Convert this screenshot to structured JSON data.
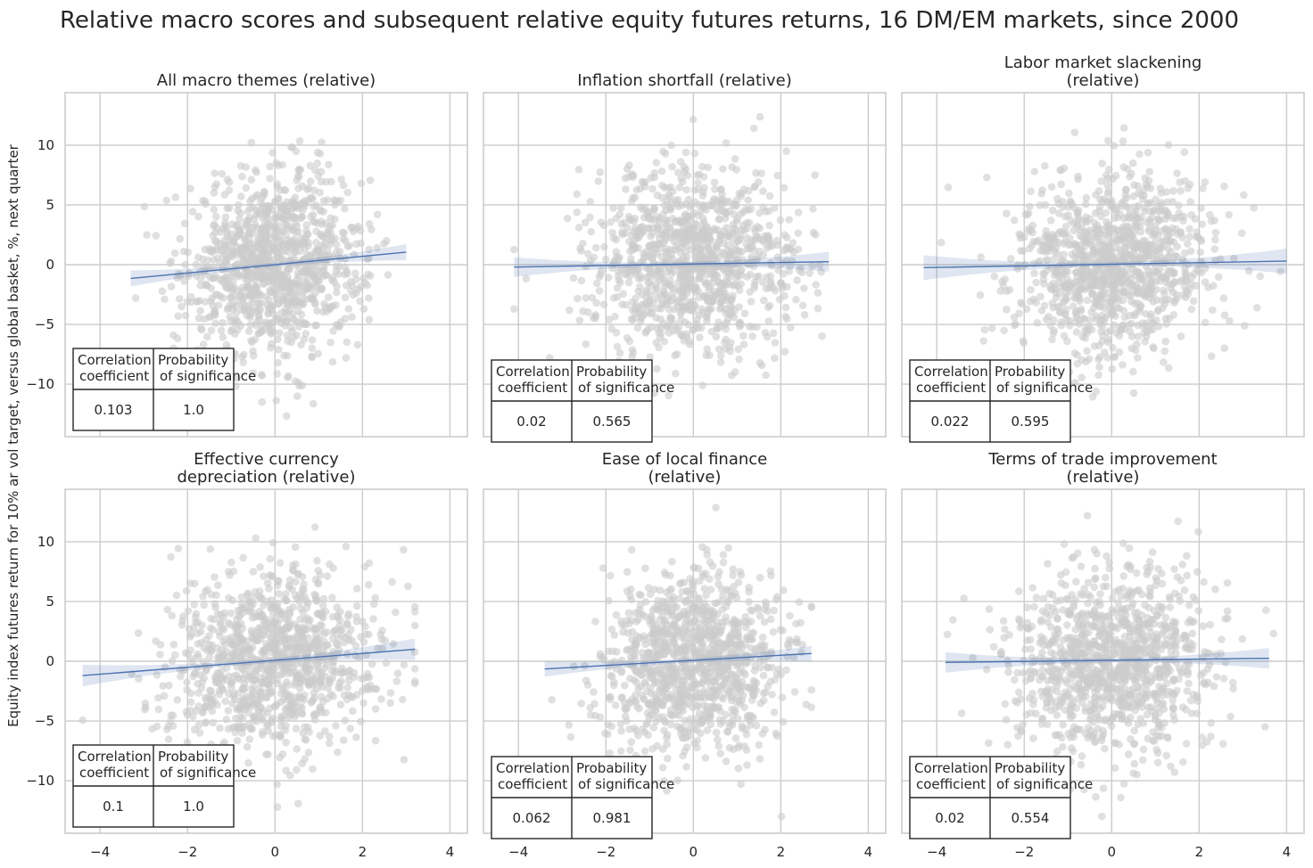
{
  "figure": {
    "title": "Relative macro scores and subsequent relative equity futures returns, 16 DM/EM markets, since 2000",
    "ylabel": "Equity index futures return for 10% ar vol target, versus global basket, %, next quarter",
    "table_headers": [
      "Correlation\ncoefficient",
      "Probability\nof significance"
    ]
  },
  "chart_data": [
    {
      "type": "scatter",
      "title": "All macro themes (relative)",
      "xlim": [
        -4.8,
        4.4
      ],
      "ylim": [
        -14.4,
        14.4
      ],
      "xticks": [
        -4,
        -2,
        0,
        2,
        4
      ],
      "yticks": [
        -10,
        -5,
        0,
        5,
        10
      ],
      "point_count": 1100,
      "x_mean": 0,
      "x_sd": 1.0,
      "x_range": [
        -3.4,
        3.1
      ],
      "y_sd": 3.8,
      "y_range": [
        -13.0,
        13.3
      ],
      "regression": {
        "x": [
          -3.3,
          3.0
        ],
        "y": [
          -1.15,
          1.05
        ]
      },
      "correlation_coefficient": "0.103",
      "probability_of_significance": "1.0",
      "grid": true
    },
    {
      "type": "scatter",
      "title": "Inflation shortfall (relative)",
      "xlim": [
        -4.8,
        4.4
      ],
      "ylim": [
        -14.4,
        14.4
      ],
      "xticks": [
        -4,
        -2,
        0,
        2,
        4
      ],
      "yticks": [
        -10,
        -5,
        0,
        5,
        10
      ],
      "point_count": 1100,
      "x_mean": 0,
      "x_sd": 1.15,
      "x_range": [
        -4.1,
        3.1
      ],
      "y_sd": 3.8,
      "y_range": [
        -13.0,
        13.3
      ],
      "regression": {
        "x": [
          -4.1,
          3.1
        ],
        "y": [
          -0.2,
          0.25
        ]
      },
      "correlation_coefficient": "0.02",
      "probability_of_significance": "0.565",
      "grid": true
    },
    {
      "type": "scatter",
      "title": "Labor market slackening\n(relative)",
      "xlim": [
        -4.8,
        4.4
      ],
      "ylim": [
        -14.4,
        14.4
      ],
      "xticks": [
        -4,
        -2,
        0,
        2,
        4
      ],
      "yticks": [
        -10,
        -5,
        0,
        5,
        10
      ],
      "point_count": 1100,
      "x_mean": 0,
      "x_sd": 1.15,
      "x_range": [
        -4.3,
        4.0
      ],
      "y_sd": 3.8,
      "y_range": [
        -13.0,
        13.3
      ],
      "regression": {
        "x": [
          -4.3,
          4.0
        ],
        "y": [
          -0.25,
          0.3
        ]
      },
      "correlation_coefficient": "0.022",
      "probability_of_significance": "0.595",
      "grid": true
    },
    {
      "type": "scatter",
      "title": "Effective currency\ndepreciation (relative)",
      "xlim": [
        -4.8,
        4.4
      ],
      "ylim": [
        -14.4,
        14.4
      ],
      "xticks": [
        -4,
        -2,
        0,
        2,
        4
      ],
      "yticks": [
        -10,
        -5,
        0,
        5,
        10
      ],
      "point_count": 1100,
      "x_mean": 0,
      "x_sd": 1.2,
      "x_range": [
        -4.4,
        3.2
      ],
      "y_sd": 3.8,
      "y_range": [
        -13.0,
        13.3
      ],
      "regression": {
        "x": [
          -4.4,
          3.2
        ],
        "y": [
          -1.2,
          1.0
        ]
      },
      "correlation_coefficient": "0.1",
      "probability_of_significance": "1.0",
      "grid": true
    },
    {
      "type": "scatter",
      "title": "Ease of local finance\n(relative)",
      "xlim": [
        -4.8,
        4.4
      ],
      "ylim": [
        -14.4,
        14.4
      ],
      "xticks": [
        -4,
        -2,
        0,
        2,
        4
      ],
      "yticks": [
        -10,
        -5,
        0,
        5,
        10
      ],
      "point_count": 1100,
      "x_mean": 0,
      "x_sd": 1.05,
      "x_range": [
        -3.5,
        2.7
      ],
      "y_sd": 3.8,
      "y_range": [
        -13.0,
        13.3
      ],
      "regression": {
        "x": [
          -3.4,
          2.7
        ],
        "y": [
          -0.65,
          0.65
        ]
      },
      "correlation_coefficient": "0.062",
      "probability_of_significance": "0.981",
      "grid": true
    },
    {
      "type": "scatter",
      "title": "Terms of trade improvement\n(relative)",
      "xlim": [
        -4.8,
        4.4
      ],
      "ylim": [
        -14.4,
        14.4
      ],
      "xticks": [
        -4,
        -2,
        0,
        2,
        4
      ],
      "yticks": [
        -10,
        -5,
        0,
        5,
        10
      ],
      "point_count": 1100,
      "x_mean": 0,
      "x_sd": 1.15,
      "x_range": [
        -3.9,
        3.7
      ],
      "y_sd": 3.8,
      "y_range": [
        -13.0,
        13.3
      ],
      "regression": {
        "x": [
          -3.8,
          3.6
        ],
        "y": [
          -0.1,
          0.25
        ]
      },
      "correlation_coefficient": "0.02",
      "probability_of_significance": "0.554",
      "grid": true
    }
  ],
  "colors": {
    "points": "#cccccc",
    "regression_line": "#4c72b0",
    "confidence_band": "#4c72b0",
    "grid": "#cccccc",
    "axes_frame": "#cccccc",
    "text": "#262626"
  }
}
